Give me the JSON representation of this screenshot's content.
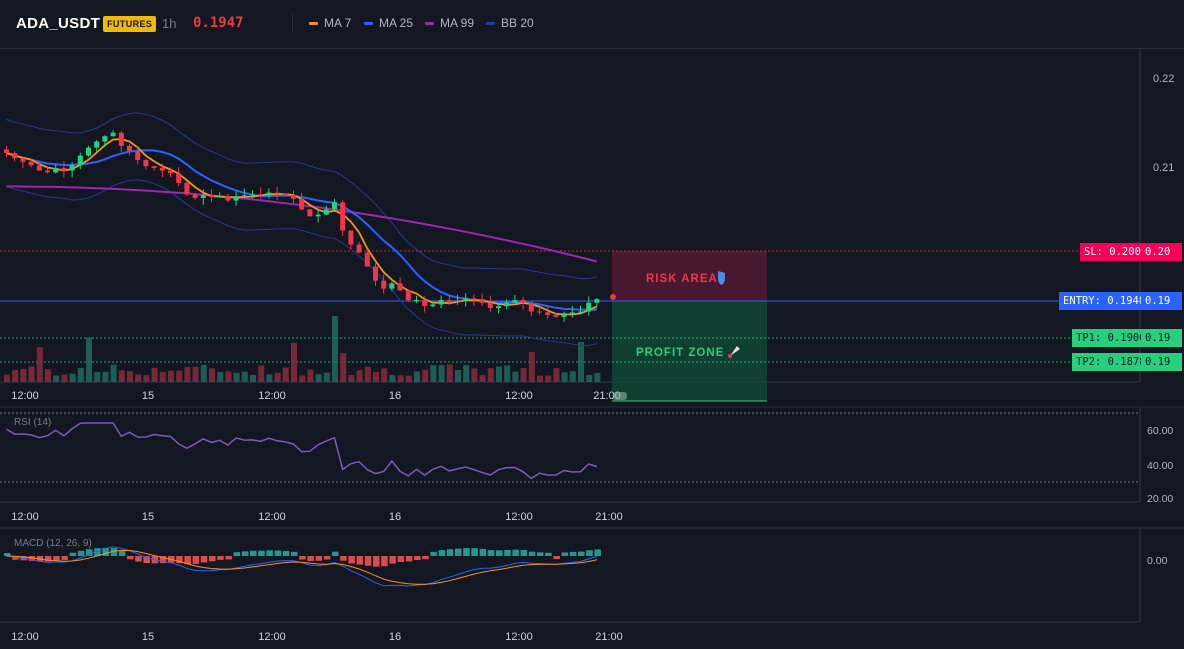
{
  "header": {
    "symbol": "ADA_USDT",
    "badge": "FUTURES",
    "timeframe": "1h",
    "last_price": "0.1947",
    "legend": [
      {
        "label": "MA 7",
        "color": "#f7931a"
      },
      {
        "label": "MA 25",
        "color": "#2962ff"
      },
      {
        "label": "MA 99",
        "color": "#9c27b0"
      },
      {
        "label": "BB 20",
        "color": "#283a8f"
      }
    ]
  },
  "main": {
    "y_ticks": [
      "0.22",
      "0.21",
      "0.20",
      "0.19",
      "0.19",
      "0.19"
    ],
    "x_ticks": [
      "12:00",
      "15",
      "12:00",
      "16",
      "12:00",
      "21:00"
    ],
    "sl_tag": "SL: 0.2004",
    "sl_value": "0.20",
    "entry_tag": "ENTRY: 0.1948",
    "entry_value": "0.19",
    "tp1_tag": "TP1: 0.1906",
    "tp1_value": "0.19",
    "tp2_tag": "TP2: 0.1878",
    "tp2_value": "0.19",
    "risk_label": "RISK AREA",
    "profit_label": "PROFIT ZONE",
    "risk_icon": "shield-icon",
    "profit_icon": "rocket-icon"
  },
  "rsi": {
    "label": "RSI (14)",
    "y_ticks": [
      "60.00",
      "40.00",
      "20.00"
    ],
    "x_ticks": [
      "12:00",
      "15",
      "12:00",
      "16",
      "12:00",
      "21:00"
    ]
  },
  "macd": {
    "label": "MACD (12, 26, 9)",
    "y_ticks": [
      "0.00"
    ],
    "x_ticks": [
      "12:00",
      "15",
      "12:00",
      "16",
      "12:00",
      "21:00"
    ]
  },
  "colors": {
    "up": "#26d07c",
    "down": "#f23645",
    "background": "#131722",
    "rsi_line": "#7e57c2"
  },
  "chart_data": {
    "type": "candlestick",
    "ohlc_close_approx": [
      0.2118,
      0.2112,
      0.2108,
      0.2104,
      0.2098,
      0.2096,
      0.2101,
      0.2098,
      0.2104,
      0.2115,
      0.2124,
      0.2131,
      0.2137,
      0.2141,
      0.2126,
      0.212,
      0.211,
      0.2103,
      0.2101,
      0.2098,
      0.2095,
      0.2084,
      0.2071,
      0.2067,
      0.207,
      0.2068,
      0.2069,
      0.2064,
      0.2069,
      0.207,
      0.2071,
      0.207,
      0.2073,
      0.2072,
      0.207,
      0.2066,
      0.2054,
      0.2046,
      0.2048,
      0.2054,
      0.2062,
      0.203,
      0.2014,
      0.2005,
      0.1989,
      0.1973,
      0.1964,
      0.197,
      0.1962,
      0.1951,
      0.1951,
      0.1944,
      0.1946,
      0.1951,
      0.1949,
      0.195,
      0.1953,
      0.1952,
      0.1948,
      0.1942,
      0.1944,
      0.1948,
      0.1951,
      0.1948,
      0.1938,
      0.1937,
      0.1934,
      0.1932,
      0.1936,
      0.1937,
      0.1938,
      0.1948,
      0.1952
    ],
    "ylim": [
      0.1858,
      0.2236
    ]
  }
}
